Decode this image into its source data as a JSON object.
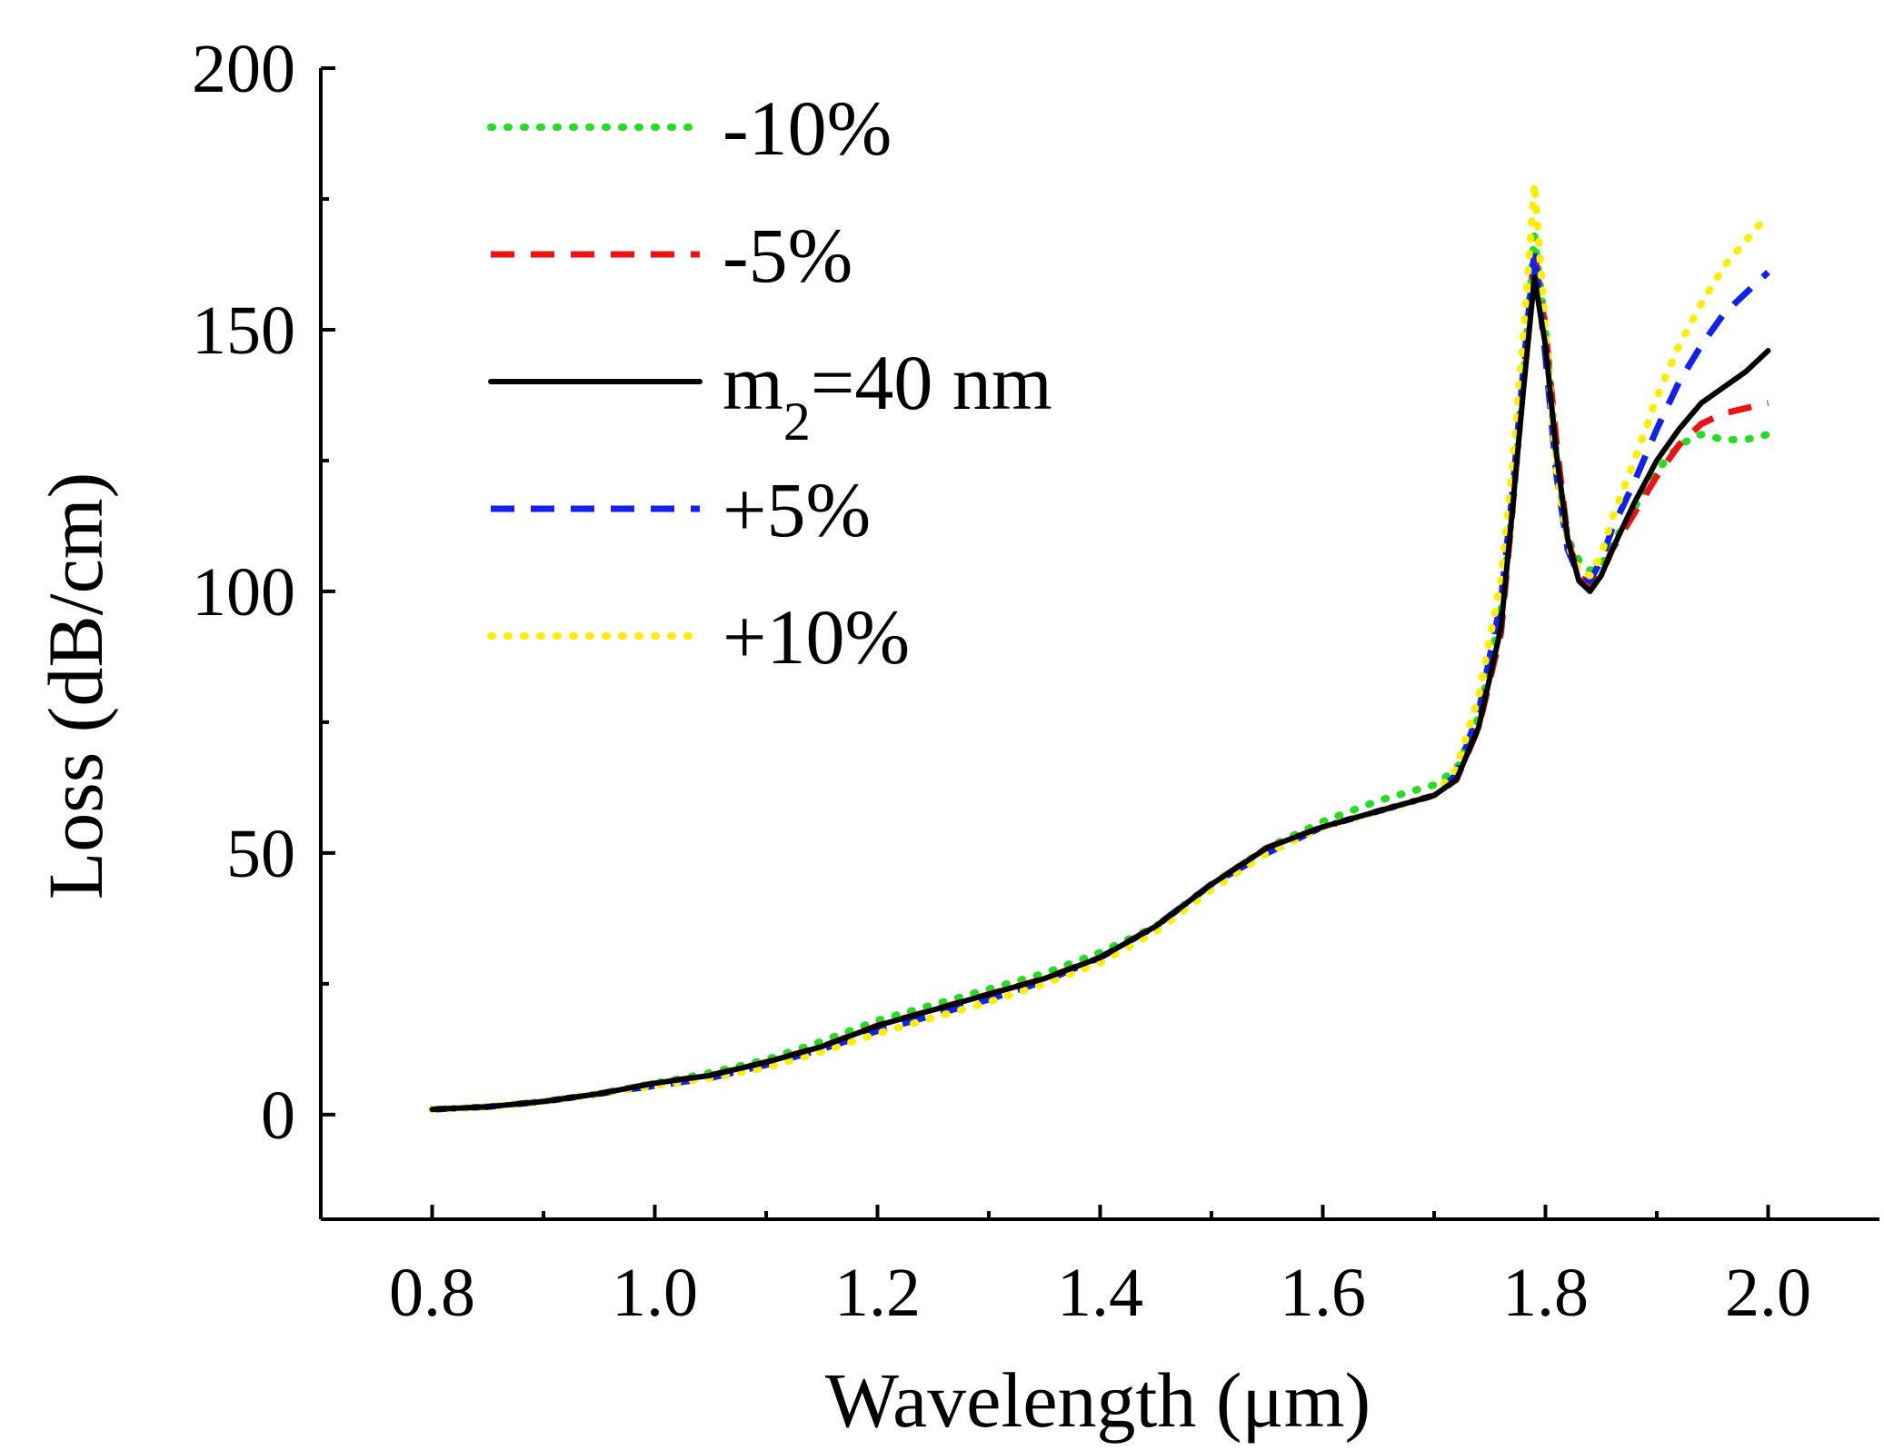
{
  "chart_data": {
    "type": "line",
    "xlabel": "Wavelength (μm)",
    "ylabel": "Loss (dB/cm)",
    "xlim": [
      0.7,
      2.1
    ],
    "ylim": [
      -20,
      200
    ],
    "xticks": [
      "0.8",
      "1.0",
      "1.2",
      "1.4",
      "1.6",
      "1.8",
      "2.0"
    ],
    "yticks": [
      "0",
      "50",
      "100",
      "150",
      "200"
    ],
    "legend_position": "top-left",
    "grid": false,
    "legend": {
      "entries": [
        {
          "prefix": "-10%",
          "sub": "",
          "suffix": ""
        },
        {
          "prefix": "-5%",
          "sub": "",
          "suffix": ""
        },
        {
          "prefix": "m",
          "sub": "2",
          "suffix": "=40 nm"
        },
        {
          "prefix": "+5%",
          "sub": "",
          "suffix": ""
        },
        {
          "prefix": "+10%",
          "sub": "",
          "suffix": ""
        }
      ]
    },
    "x": [
      0.8,
      0.85,
      0.9,
      0.95,
      1.0,
      1.05,
      1.1,
      1.15,
      1.2,
      1.25,
      1.3,
      1.35,
      1.4,
      1.45,
      1.5,
      1.55,
      1.6,
      1.65,
      1.7,
      1.72,
      1.74,
      1.76,
      1.77,
      1.78,
      1.79,
      1.8,
      1.81,
      1.82,
      1.83,
      1.84,
      1.85,
      1.86,
      1.88,
      1.9,
      1.92,
      1.94,
      1.96,
      1.98,
      2.0
    ],
    "series": [
      {
        "color": "#22dd22",
        "dash": "dotted",
        "values": [
          1,
          1.5,
          2.5,
          4,
          6,
          8,
          10.5,
          14,
          18,
          21,
          24,
          27,
          31,
          36,
          44,
          51,
          56,
          60,
          63,
          66,
          76,
          96,
          115,
          140,
          168,
          150,
          125,
          110,
          106,
          104,
          105,
          109,
          116,
          123,
          128,
          130,
          129,
          129,
          130
        ]
      },
      {
        "color": "#ee1111",
        "dash": "dashed",
        "values": [
          1,
          1.5,
          2.5,
          4,
          6,
          7.5,
          10,
          13,
          17,
          20,
          23,
          26,
          30,
          36,
          44,
          51,
          55,
          58,
          61,
          64,
          74,
          92,
          115,
          140,
          165,
          150,
          128,
          110,
          103,
          101,
          103,
          108,
          115,
          122,
          128,
          132,
          134,
          135,
          136
        ]
      },
      {
        "color": "#000000",
        "dash": "solid",
        "values": [
          1,
          1.5,
          2.5,
          4,
          6,
          7.5,
          10,
          13,
          17,
          20,
          23,
          26,
          30,
          36,
          44,
          51,
          55,
          58,
          61,
          64,
          74,
          93,
          115,
          138,
          160,
          147,
          126,
          110,
          102,
          100,
          103,
          108,
          117,
          125,
          131,
          136,
          139,
          142,
          146
        ]
      },
      {
        "color": "#1122ee",
        "dash": "dashed",
        "values": [
          1,
          1.5,
          2.5,
          4,
          5.5,
          7,
          9.5,
          12.5,
          16,
          19,
          22,
          25.5,
          30,
          36,
          44,
          50,
          55,
          58,
          61,
          65,
          77,
          98,
          118,
          142,
          165,
          145,
          122,
          108,
          103,
          102,
          106,
          112,
          121,
          131,
          140,
          147,
          153,
          157,
          161
        ]
      },
      {
        "color": "#ffee00",
        "dash": "dotted",
        "values": [
          1,
          1.5,
          2.5,
          4,
          5.5,
          7,
          9,
          12,
          15.5,
          18.5,
          21.5,
          25,
          29,
          35,
          43,
          50,
          55,
          58,
          61,
          66,
          80,
          102,
          123,
          148,
          178,
          150,
          123,
          109,
          104,
          103,
          107,
          114,
          125,
          137,
          147,
          155,
          162,
          167,
          172
        ]
      }
    ]
  }
}
